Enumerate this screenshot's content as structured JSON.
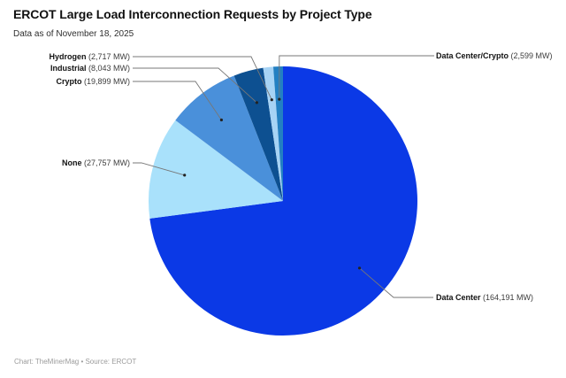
{
  "header": {
    "title": "ERCOT Large Load Interconnection Requests by Project Type",
    "subtitle": "Data as of November 18, 2025"
  },
  "footer": {
    "credit": "Chart: TheMinerMag • Source: ERCOT"
  },
  "chart_data": {
    "type": "pie",
    "title": "ERCOT Large Load Interconnection Requests by Project Type",
    "subtitle": "Data as of November 18, 2025",
    "unit": "MW",
    "legend_position": "external-callout-labels",
    "direction": "clockwise",
    "start_angle_deg": 0,
    "slices": [
      {
        "name": "Data Center",
        "value": 164191,
        "value_label": "(164,191 MW)",
        "color": "#0b39e6"
      },
      {
        "name": "None",
        "value": 27757,
        "value_label": "(27,757 MW)",
        "color": "#a9e1fb"
      },
      {
        "name": "Crypto",
        "value": 19899,
        "value_label": "(19,899 MW)",
        "color": "#4a90da"
      },
      {
        "name": "Industrial",
        "value": 8043,
        "value_label": "(8,043 MW)",
        "color": "#0d5091"
      },
      {
        "name": "Hydrogen",
        "value": 2717,
        "value_label": "(2,717 MW)",
        "color": "#a6d3f5"
      },
      {
        "name": "Data Center/Crypto",
        "value": 2599,
        "value_label": "(2,599 MW)",
        "color": "#2380c2"
      }
    ],
    "callout_dot_color": "#222222",
    "callout_line_color": "#777777"
  }
}
